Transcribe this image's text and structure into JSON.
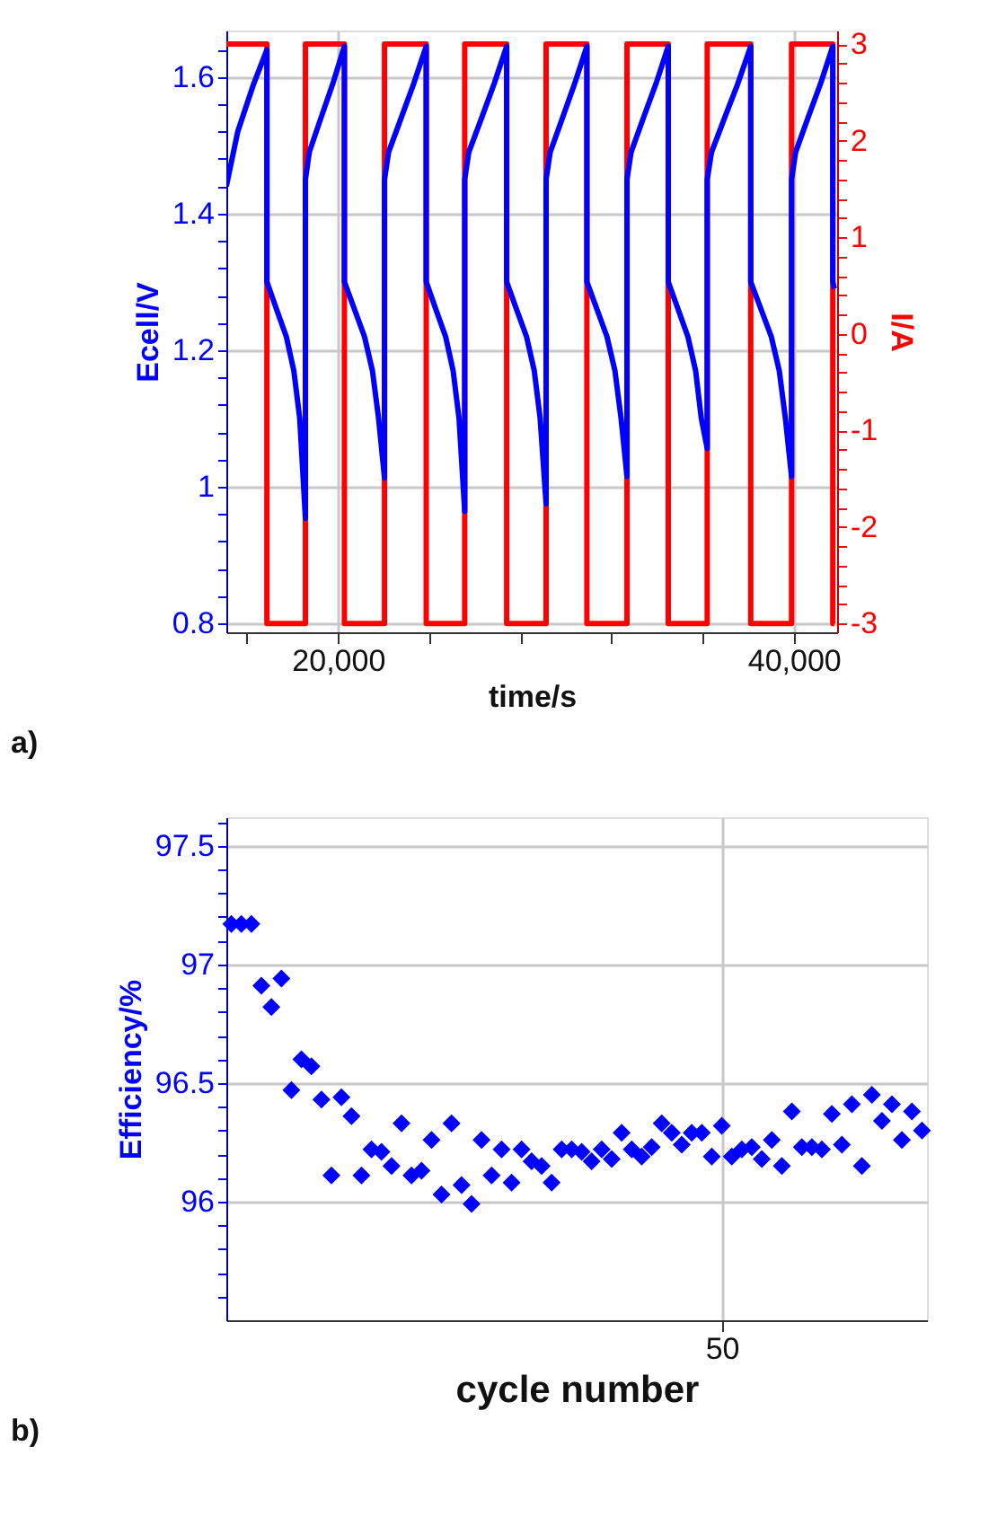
{
  "chart_data": [
    {
      "type": "line",
      "xlabel": "time/s",
      "ylabel": "Ecell/V",
      "y2label": "I/A",
      "annotations": [
        "a)"
      ],
      "grid": true,
      "line_style": "solid",
      "xlim": [
        15100,
        41900
      ],
      "ylim": [
        0.787,
        1.668
      ],
      "y2lim": [
        -3.09,
        3.14
      ],
      "xticks": [
        {
          "value": 16000,
          "label": null
        },
        {
          "value": 20000,
          "label": "20,000"
        },
        {
          "value": 24000,
          "label": null
        },
        {
          "value": 28000,
          "label": null
        },
        {
          "value": 32000,
          "label": null
        },
        {
          "value": 36000,
          "label": null
        },
        {
          "value": 40000,
          "label": "40,000"
        }
      ],
      "yticks": [
        0.8,
        {
          "value": 0.84,
          "label": null
        },
        {
          "value": 0.88,
          "label": null
        },
        {
          "value": 0.92,
          "label": null
        },
        {
          "value": 0.96,
          "label": null
        },
        1,
        {
          "value": 1.04,
          "label": null
        },
        {
          "value": 1.08,
          "label": null
        },
        {
          "value": 1.12,
          "label": null
        },
        {
          "value": 1.16,
          "label": null
        },
        1.2,
        {
          "value": 1.24,
          "label": null
        },
        {
          "value": 1.28,
          "label": null
        },
        {
          "value": 1.32,
          "label": null
        },
        {
          "value": 1.36,
          "label": null
        },
        1.4,
        {
          "value": 1.44,
          "label": null
        },
        {
          "value": 1.48,
          "label": null
        },
        {
          "value": 1.52,
          "label": null
        },
        {
          "value": 1.56,
          "label": null
        },
        1.6,
        {
          "value": 1.64,
          "label": null
        }
      ],
      "y2ticks": [
        -3,
        {
          "value": -2.8,
          "label": null
        },
        {
          "value": -2.6,
          "label": null
        },
        {
          "value": -2.4,
          "label": null
        },
        {
          "value": -2.2,
          "label": null
        },
        -2,
        {
          "value": -1.8,
          "label": null
        },
        {
          "value": -1.6,
          "label": null
        },
        {
          "value": -1.4,
          "label": null
        },
        {
          "value": -1.2,
          "label": null
        },
        -1,
        {
          "value": -0.8,
          "label": null
        },
        {
          "value": -0.6,
          "label": null
        },
        {
          "value": -0.4,
          "label": null
        },
        {
          "value": -0.2,
          "label": null
        },
        0,
        {
          "value": 0.2,
          "label": null
        },
        {
          "value": 0.4,
          "label": null
        },
        {
          "value": 0.6,
          "label": null
        },
        {
          "value": 0.8,
          "label": null
        },
        1,
        {
          "value": 1.2,
          "label": null
        },
        {
          "value": 1.4,
          "label": null
        },
        {
          "value": 1.6,
          "label": null
        },
        {
          "value": 1.8,
          "label": null
        },
        2,
        {
          "value": 2.2,
          "label": null
        },
        {
          "value": 2.4,
          "label": null
        },
        {
          "value": 2.6,
          "label": null
        },
        {
          "value": 2.8,
          "label": null
        },
        3
      ],
      "series": [
        {
          "color": "#ff0000",
          "axis": "y2",
          "x": [
            15100,
            16880,
            16880,
            18570,
            18570,
            20280,
            20280,
            22040,
            22040,
            23870,
            23870,
            25560,
            25560,
            27400,
            27400,
            29130,
            29130,
            30920,
            30920,
            32680,
            32680,
            34490,
            34490,
            36200,
            36200,
            38110,
            38110,
            39900,
            39900,
            41710,
            41710,
            41780
          ],
          "values": [
            3,
            3,
            -3,
            -3,
            3,
            3,
            -3,
            -3,
            3,
            3,
            -3,
            -3,
            3,
            3,
            -3,
            -3,
            3,
            3,
            -3,
            -3,
            3,
            3,
            -3,
            -3,
            3,
            3,
            -3,
            -3,
            3,
            3,
            -3,
            -3
          ]
        },
        {
          "color": "#0000ff",
          "x": [
            15100,
            15600,
            16300,
            16880,
            16880,
            17300,
            17730,
            18060,
            18320,
            18570,
            18570,
            18740,
            19250,
            19770,
            20280,
            20280,
            20720,
            21160,
            21510,
            21780,
            22040,
            22040,
            22220,
            22770,
            23320,
            23870,
            23870,
            24290,
            24720,
            25050,
            25310,
            25560,
            25560,
            25740,
            26300,
            26850,
            27400,
            27400,
            27830,
            28270,
            28610,
            28870,
            29130,
            29130,
            29310,
            29850,
            30380,
            30920,
            30920,
            31360,
            31800,
            32150,
            32420,
            32680,
            32680,
            32860,
            33400,
            33950,
            34490,
            34490,
            34920,
            35350,
            35690,
            35940,
            36200,
            36200,
            36390,
            36960,
            37540,
            38110,
            38110,
            38560,
            39010,
            39360,
            39630,
            39900,
            39900,
            40080,
            40620,
            41170,
            41710,
            41710,
            41780
          ],
          "values": [
            1.44,
            1.52,
            1.59,
            1.64,
            1.3,
            1.26,
            1.22,
            1.17,
            1.1,
            0.954,
            1.45,
            1.49,
            1.54,
            1.59,
            1.645,
            1.3,
            1.26,
            1.22,
            1.17,
            1.1,
            1.013,
            1.45,
            1.49,
            1.54,
            1.59,
            1.645,
            1.3,
            1.26,
            1.22,
            1.17,
            1.1,
            0.964,
            1.45,
            1.49,
            1.54,
            1.59,
            1.645,
            1.3,
            1.26,
            1.22,
            1.17,
            1.1,
            0.975,
            1.45,
            1.49,
            1.54,
            1.59,
            1.645,
            1.3,
            1.26,
            1.22,
            1.17,
            1.1,
            1.015,
            1.45,
            1.49,
            1.54,
            1.59,
            1.645,
            1.3,
            1.26,
            1.22,
            1.17,
            1.1,
            1.056,
            1.45,
            1.49,
            1.54,
            1.59,
            1.645,
            1.3,
            1.26,
            1.22,
            1.17,
            1.1,
            1.015,
            1.45,
            1.49,
            1.54,
            1.59,
            1.645,
            1.3,
            1.29
          ]
        }
      ]
    },
    {
      "type": "scatter",
      "xlabel": "cycle number",
      "ylabel": "Efficiency/%",
      "annotations": [
        "b)"
      ],
      "grid": true,
      "marker": "diamond",
      "color": "#0000ff",
      "ylim": [
        95.5,
        97.62
      ],
      "categories": [
        null,
        null,
        null,
        null,
        null,
        null,
        null,
        null,
        null,
        null,
        null,
        null,
        null,
        null,
        null,
        null,
        null,
        null,
        null,
        null,
        null,
        null,
        null,
        null,
        null,
        null,
        null,
        null,
        null,
        null,
        null,
        null,
        null,
        null,
        null,
        null,
        null,
        null,
        null,
        null,
        null,
        null,
        null,
        null,
        null,
        null,
        null,
        null,
        null,
        "50",
        null,
        null,
        null,
        null,
        null,
        null,
        null,
        null,
        null,
        null,
        null,
        null,
        null,
        null,
        null,
        null,
        null,
        null,
        null,
        null
      ],
      "yticks": [
        {
          "value": 95.6,
          "label": null
        },
        {
          "value": 95.7,
          "label": null
        },
        {
          "value": 95.8,
          "label": null
        },
        {
          "value": 95.9,
          "label": null
        },
        96,
        {
          "value": 96.1,
          "label": null
        },
        {
          "value": 96.2,
          "label": null
        },
        {
          "value": 96.3,
          "label": null
        },
        {
          "value": 96.4,
          "label": null
        },
        96.5,
        {
          "value": 96.6,
          "label": null
        },
        {
          "value": 96.7,
          "label": null
        },
        {
          "value": 96.8,
          "label": null
        },
        {
          "value": 96.9,
          "label": null
        },
        97,
        {
          "value": 97.1,
          "label": null
        },
        {
          "value": 97.2,
          "label": null
        },
        {
          "value": 97.3,
          "label": null
        },
        {
          "value": 97.4,
          "label": null
        },
        97.5,
        {
          "value": 97.6,
          "label": null
        }
      ],
      "values": [
        97.17,
        97.17,
        97.17,
        96.91,
        96.82,
        96.94,
        96.47,
        96.6,
        96.57,
        96.43,
        96.11,
        96.44,
        96.36,
        96.11,
        96.22,
        96.21,
        96.15,
        96.33,
        96.11,
        96.13,
        96.26,
        96.03,
        96.33,
        96.07,
        95.99,
        96.26,
        96.11,
        96.22,
        96.08,
        96.22,
        96.17,
        96.15,
        96.08,
        96.22,
        96.22,
        96.21,
        96.17,
        96.22,
        96.18,
        96.29,
        96.22,
        96.19,
        96.23,
        96.33,
        96.29,
        96.24,
        96.29,
        96.29,
        96.19,
        96.32,
        96.19,
        96.22,
        96.23,
        96.18,
        96.26,
        96.15,
        96.38,
        96.23,
        96.23,
        96.22,
        96.37,
        96.24,
        96.41,
        96.15,
        96.45,
        96.34,
        96.41,
        96.26,
        96.38,
        96.3
      ]
    }
  ]
}
